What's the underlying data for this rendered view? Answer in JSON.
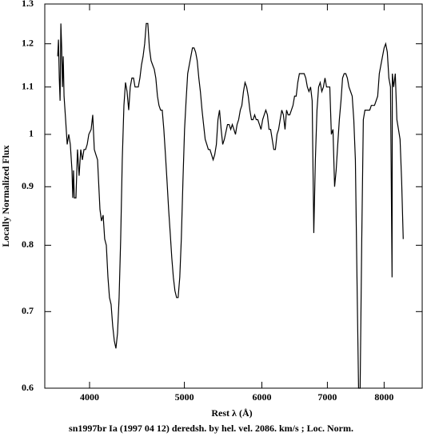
{
  "chart_data": {
    "type": "line",
    "title": "sn1997br Ia (1997 04 12) deredsh. by hel. vel.  2086. km/s ;  Loc. Norm.",
    "xlabel": "Rest λ (Å)",
    "ylabel": "Locally Normalized Flux",
    "xscale": "log",
    "yscale": "log",
    "xlim": [
      3600,
      8750
    ],
    "ylim": [
      0.6,
      1.3
    ],
    "xticks": [
      4000,
      5000,
      6000,
      7000,
      8000
    ],
    "yticks": [
      0.6,
      0.7,
      0.8,
      0.9,
      1,
      1.1,
      1.2,
      1.3
    ],
    "color": "#000000",
    "x": [
      3711,
      3718,
      3725,
      3732,
      3739,
      3746,
      3753,
      3760,
      3767,
      3781,
      3795,
      3809,
      3823,
      3838,
      3845,
      3852,
      3859,
      3874,
      3888,
      3903,
      3918,
      3933,
      3948,
      3963,
      3978,
      3993,
      4015,
      4030,
      4045,
      4060,
      4076,
      4099,
      4114,
      4130,
      4145,
      4161,
      4177,
      4192,
      4208,
      4224,
      4240,
      4256,
      4272,
      4288,
      4304,
      4320,
      4337,
      4353,
      4369,
      4386,
      4402,
      4419,
      4436,
      4452,
      4469,
      4486,
      4503,
      4520,
      4537,
      4554,
      4571,
      4588,
      4605,
      4623,
      4640,
      4658,
      4675,
      4693,
      4710,
      4728,
      4746,
      4764,
      4782,
      4800,
      4818,
      4836,
      4854,
      4872,
      4890,
      4909,
      4927,
      4946,
      4964,
      4983,
      5002,
      5020,
      5039,
      5058,
      5077,
      5096,
      5115,
      5134,
      5153,
      5173,
      5192,
      5212,
      5231,
      5251,
      5271,
      5290,
      5310,
      5330,
      5350,
      5370,
      5391,
      5411,
      5431,
      5452,
      5472,
      5493,
      5534,
      5555,
      5576,
      5597,
      5618,
      5639,
      5660,
      5681,
      5703,
      5724,
      5746,
      5767,
      5789,
      5811,
      5833,
      5855,
      5877,
      5899,
      5921,
      5943,
      5966,
      5988,
      6011,
      6033,
      6056,
      6079,
      6102,
      6125,
      6148,
      6171,
      6194,
      6218,
      6241,
      6264,
      6288,
      6312,
      6336,
      6359,
      6383,
      6407,
      6432,
      6456,
      6480,
      6505,
      6529,
      6554,
      6578,
      6603,
      6628,
      6653,
      6678,
      6703,
      6729,
      6754,
      6780,
      6805,
      6831,
      6857,
      6883,
      6909,
      6935,
      6961,
      6987,
      7013,
      7040,
      7066,
      7093,
      7120,
      7146,
      7173,
      7200,
      7228,
      7255,
      7282,
      7310,
      7337,
      7365,
      7393,
      7421,
      7449,
      7477,
      7505,
      7533,
      7561,
      7590,
      7618,
      7647,
      7676,
      7705,
      7734,
      7763,
      7792,
      7821,
      7851,
      7880,
      7910,
      7940,
      7970,
      8000,
      8030,
      8060,
      8090,
      8121,
      8151,
      8156,
      8182,
      8213,
      8244,
      8275,
      8306,
      8337,
      8368
    ],
    "values": [
      1.17,
      1.21,
      1.12,
      1.07,
      1.25,
      1.19,
      1.1,
      1.17,
      1.08,
      1.03,
      0.98,
      1.0,
      0.98,
      0.93,
      0.88,
      0.93,
      0.88,
      0.88,
      0.97,
      0.92,
      0.97,
      0.95,
      0.97,
      0.97,
      0.98,
      1.0,
      1.01,
      1.04,
      0.97,
      0.96,
      0.95,
      0.86,
      0.84,
      0.85,
      0.81,
      0.8,
      0.75,
      0.72,
      0.71,
      0.68,
      0.66,
      0.65,
      0.67,
      0.72,
      0.81,
      0.95,
      1.06,
      1.11,
      1.09,
      1.05,
      1.1,
      1.12,
      1.12,
      1.1,
      1.1,
      1.1,
      1.12,
      1.15,
      1.17,
      1.2,
      1.25,
      1.25,
      1.19,
      1.16,
      1.15,
      1.14,
      1.12,
      1.08,
      1.06,
      1.05,
      1.05,
      1.01,
      0.96,
      0.91,
      0.86,
      0.82,
      0.78,
      0.75,
      0.73,
      0.72,
      0.72,
      0.75,
      0.81,
      0.91,
      1.01,
      1.07,
      1.13,
      1.15,
      1.17,
      1.19,
      1.19,
      1.18,
      1.16,
      1.12,
      1.09,
      1.05,
      1.02,
      0.99,
      0.98,
      0.97,
      0.97,
      0.96,
      0.95,
      0.96,
      0.98,
      1.03,
      1.05,
      1.01,
      0.98,
      0.99,
      1.02,
      1.02,
      1.01,
      1.02,
      1.01,
      1.0,
      1.02,
      1.03,
      1.05,
      1.06,
      1.09,
      1.11,
      1.1,
      1.08,
      1.05,
      1.03,
      1.03,
      1.04,
      1.03,
      1.03,
      1.02,
      1.01,
      1.03,
      1.04,
      1.05,
      1.04,
      1.01,
      1.01,
      0.99,
      0.97,
      0.97,
      1.0,
      1.01,
      1.03,
      1.05,
      1.04,
      1.01,
      1.05,
      1.04,
      1.04,
      1.05,
      1.06,
      1.08,
      1.08,
      1.11,
      1.13,
      1.13,
      1.13,
      1.13,
      1.12,
      1.1,
      1.09,
      1.1,
      1.07,
      0.82,
      0.95,
      1.05,
      1.1,
      1.11,
      1.09,
      1.1,
      1.12,
      1.1,
      1.1,
      1.1,
      1.0,
      1.01,
      0.9,
      0.93,
      0.98,
      1.03,
      1.07,
      1.12,
      1.13,
      1.13,
      1.12,
      1.1,
      1.09,
      1.08,
      1.03,
      0.95,
      0.75,
      0.6,
      0.6,
      0.81,
      1.03,
      1.05,
      1.05,
      1.05,
      1.05,
      1.06,
      1.06,
      1.06,
      1.07,
      1.08,
      1.13,
      1.15,
      1.17,
      1.19,
      1.2,
      1.18,
      1.12,
      1.1,
      0.75,
      1.13,
      1.1,
      1.13,
      1.03,
      1.01,
      0.99,
      0.91,
      0.81
    ]
  }
}
